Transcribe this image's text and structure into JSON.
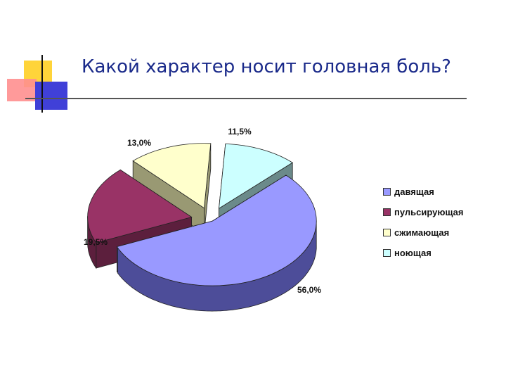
{
  "slide": {
    "title": "Какой характер носит головная боль?"
  },
  "chart_data": {
    "type": "pie",
    "categories": [
      "давящая",
      "пульсирующая",
      "сжимающая",
      "ноющая"
    ],
    "values": [
      56.0,
      19.5,
      13.0,
      11.5
    ],
    "value_labels": [
      "56,0%",
      "19,5%",
      "13,0%",
      "11,5%"
    ],
    "colors": [
      "#9999ff",
      "#993366",
      "#ffffcc",
      "#ccffff"
    ],
    "side_colors": [
      "#4d4d99",
      "#5c1f3d",
      "#999973",
      "#6b8a8a"
    ],
    "legend_position": "right",
    "style": "3d-exploded"
  }
}
